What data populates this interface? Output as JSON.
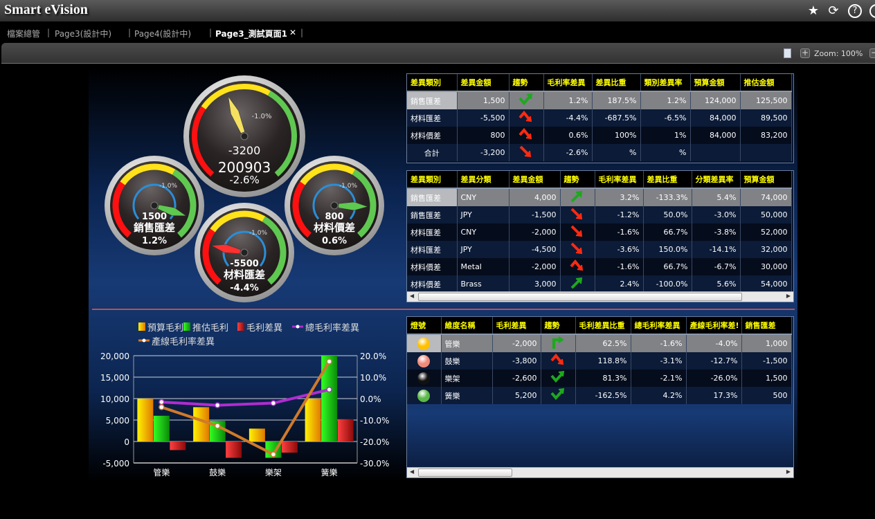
{
  "app": {
    "title": "Smart eVision"
  },
  "header_icons": [
    "star-icon",
    "refresh-icon",
    "help-icon"
  ],
  "tabs": [
    {
      "label": "檔案總管"
    },
    {
      "label": "Page3(設計中)"
    },
    {
      "label": "Page4(設計中)"
    },
    {
      "label": "Page3_測試頁面1",
      "active": true
    }
  ],
  "toolbar": {
    "zoom_label": "Zoom: 100%"
  },
  "gauges": [
    {
      "value": "-3200",
      "label": "200903",
      "pct": "-2.6%",
      "marker": "-1.0%"
    },
    {
      "value": "1500",
      "label": "銷售匯差",
      "pct": "1.2%",
      "marker": "-1.0%"
    },
    {
      "value": "-5500",
      "label": "材料匯差",
      "pct": "-4.4%",
      "marker": "-1.0%"
    },
    {
      "value": "800",
      "label": "材料價差",
      "pct": "0.6%",
      "marker": "-1.0%"
    }
  ],
  "table1": {
    "headers": [
      "差異類別",
      "差異金額",
      "趨勢",
      "毛利率差異",
      "差異比重",
      "類別差異率",
      "預算金額",
      "推估金額"
    ],
    "rows": [
      [
        "銷售匯差",
        "1,500",
        "check-up",
        "1.2%",
        "187.5%",
        "1.2%",
        "124,000",
        "125,500"
      ],
      [
        "材料匯差",
        "-5,500",
        "peak-down",
        "-4.4%",
        "-687.5%",
        "-6.5%",
        "84,000",
        "89,500"
      ],
      [
        "材料價差",
        "800",
        "peak-down",
        "0.6%",
        "100%",
        "1%",
        "84,000",
        "83,200"
      ],
      [
        "合計",
        "-3,200",
        "down",
        "-2.6%",
        "%",
        "%",
        "",
        ""
      ]
    ]
  },
  "table2": {
    "headers": [
      "差異類別",
      "差異分類",
      "差異金額",
      "趨勢",
      "毛利率差異",
      "差異比重",
      "分類差異率",
      "預算金額"
    ],
    "rows": [
      [
        "銷售匯差",
        "CNY",
        "4,000",
        "up",
        "3.2%",
        "-133.3%",
        "5.4%",
        "74,000"
      ],
      [
        "銷售匯差",
        "JPY",
        "-1,500",
        "down",
        "-1.2%",
        "50.0%",
        "-3.0%",
        "50,000"
      ],
      [
        "材料匯差",
        "CNY",
        "-2,000",
        "down",
        "-1.6%",
        "66.7%",
        "-3.8%",
        "52,000"
      ],
      [
        "材料匯差",
        "JPY",
        "-4,500",
        "down",
        "-3.6%",
        "150.0%",
        "-14.1%",
        "32,000"
      ],
      [
        "材料價差",
        "Metal",
        "-2,000",
        "peak-down",
        "-1.6%",
        "66.7%",
        "-6.7%",
        "30,000"
      ],
      [
        "材料價差",
        "Brass",
        "3,000",
        "up",
        "2.4%",
        "-100.0%",
        "5.6%",
        "54,000"
      ]
    ]
  },
  "table3": {
    "headers": [
      "燈號",
      "維度名稱",
      "毛利差異",
      "趨勢",
      "毛利差異比重",
      "總毛利率差異",
      "產線毛利率差!",
      "銷售匯差"
    ],
    "rows": [
      [
        "#ffc000",
        "管樂",
        "-2,000",
        "turn-right",
        "62.5%",
        "-1.6%",
        "-4.0%",
        "1,000"
      ],
      [
        "#f08a7a",
        "鼓樂",
        "-3,800",
        "peak-down",
        "118.8%",
        "-3.1%",
        "-12.7%",
        "-1,500"
      ],
      [
        "#111111",
        "樂架",
        "-2,600",
        "check-up",
        "81.3%",
        "-2.1%",
        "-26.0%",
        "1,500"
      ],
      [
        "#5cb84a",
        "簧樂",
        "5,200",
        "check-up",
        "-162.5%",
        "4.2%",
        "17.3%",
        "500"
      ]
    ]
  },
  "colors": {
    "up": "#1ea81e",
    "down": "#ff2a10"
  },
  "chart_data": {
    "type": "bar+line",
    "categories": [
      "管樂",
      "鼓樂",
      "樂架",
      "簧樂"
    ],
    "series": [
      {
        "name": "預算毛利",
        "type": "bar",
        "axis": "left",
        "values": [
          10000,
          8000,
          3000,
          10000
        ],
        "color": "#f0b400"
      },
      {
        "name": "推估毛利",
        "type": "bar",
        "axis": "left",
        "values": [
          6000,
          4800,
          -3800,
          20000
        ],
        "color": "#1ec81e"
      },
      {
        "name": "毛利差異",
        "type": "bar",
        "axis": "left",
        "values": [
          -2000,
          -3800,
          -2600,
          5200
        ],
        "color": "#c8262a"
      },
      {
        "name": "總毛利率差異",
        "type": "line",
        "axis": "right",
        "values": [
          -1.6,
          -3.1,
          -2.1,
          4.2
        ],
        "color": "#b02cd0"
      },
      {
        "name": "產線毛利率差異",
        "type": "line",
        "axis": "right",
        "values": [
          -4.0,
          -12.7,
          -26.0,
          17.3
        ],
        "color": "#d07a2a"
      }
    ],
    "y_left": {
      "min": -5000,
      "max": 20000,
      "ticks": [
        "20,000",
        "15,000",
        "10,000",
        "5,000",
        "0",
        "-5,000"
      ]
    },
    "y_right": {
      "min": -30,
      "max": 20,
      "ticks": [
        "20.0%",
        "10.0%",
        "0.0%",
        "-10.0%",
        "-20.0%",
        "-30.0%"
      ]
    },
    "grid": true,
    "legend": "top"
  }
}
